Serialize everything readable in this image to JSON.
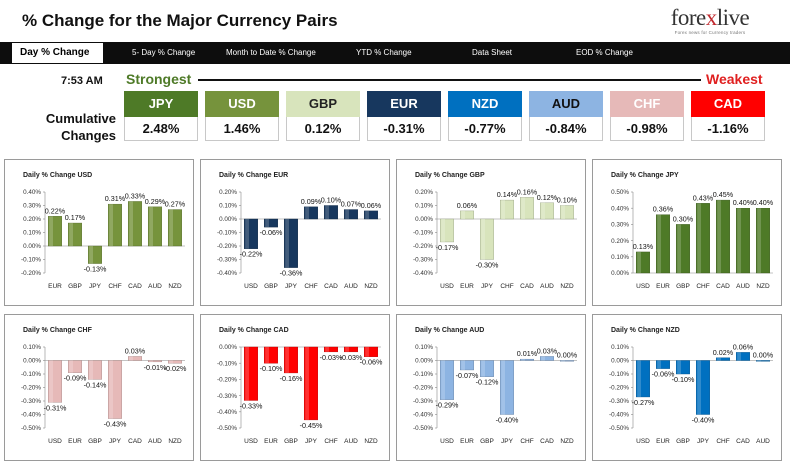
{
  "header": {
    "title": "% Change for the Major Currency Pairs"
  },
  "logo": {
    "prefix": "fore",
    "x": "x",
    "suffix": "live",
    "tagline": "Forex news for Currency traders"
  },
  "nav": {
    "items": [
      {
        "label": "Day % Change",
        "active": true
      },
      {
        "label": "5- Day % Change",
        "active": false
      },
      {
        "label": "Month to Date % Change",
        "active": false
      },
      {
        "label": "YTD % Change",
        "active": false
      },
      {
        "label": "Data Sheet",
        "active": false
      },
      {
        "label": "EOD % Change",
        "active": false
      }
    ]
  },
  "time": "7:53 AM",
  "strongest_label": "Strongest",
  "weakest_label": "Weakest",
  "cumulative_label": "Cumulative Changes",
  "cumulative": [
    {
      "currency": "JPY",
      "value": "2.48%",
      "color": "#4e7a27"
    },
    {
      "currency": "USD",
      "value": "1.46%",
      "color": "#76933c"
    },
    {
      "currency": "GBP",
      "value": "0.12%",
      "color": "#d8e4bc",
      "text_color": "#222222"
    },
    {
      "currency": "EUR",
      "value": "-0.31%",
      "color": "#17375e"
    },
    {
      "currency": "NZD",
      "value": "-0.77%",
      "color": "#0070c0"
    },
    {
      "currency": "AUD",
      "value": "-0.84%",
      "color": "#8db4e2",
      "text_color": "#111111"
    },
    {
      "currency": "CHF",
      "value": "-0.98%",
      "color": "#e6b9b8"
    },
    {
      "currency": "CAD",
      "value": "-1.16%",
      "color": "#ff0000"
    }
  ],
  "chart_data": [
    {
      "type": "bar",
      "title": "Daily % Change USD",
      "categories": [
        "EUR",
        "GBP",
        "JPY",
        "CHF",
        "CAD",
        "AUD",
        "NZD"
      ],
      "values": [
        0.22,
        0.17,
        -0.13,
        0.31,
        0.33,
        0.29,
        0.27
      ],
      "labels": [
        "0.22%",
        "0.17%",
        "-0.13%",
        "0.31%",
        "0.33%",
        "0.29%",
        "0.27%"
      ],
      "ylim": [
        -0.2,
        0.4
      ],
      "ticks": [
        0.4,
        0.3,
        0.2,
        0.1,
        0.0,
        -0.1,
        -0.2
      ],
      "tick_labels": [
        "0.40%",
        "0.30%",
        "0.20%",
        "0.10%",
        "0.00%",
        "-0.10%",
        "-0.20%"
      ],
      "color": "#76933c"
    },
    {
      "type": "bar",
      "title": "Daily % Change EUR",
      "categories": [
        "USD",
        "GBP",
        "JPY",
        "CHF",
        "CAD",
        "AUD",
        "NZD"
      ],
      "values": [
        -0.22,
        -0.06,
        -0.36,
        0.09,
        0.1,
        0.07,
        0.06
      ],
      "labels": [
        "-0.22%",
        "-0.06%",
        "-0.36%",
        "0.09%",
        "0.10%",
        "0.07%",
        "0.06%"
      ],
      "ylim": [
        -0.4,
        0.2
      ],
      "ticks": [
        0.2,
        0.1,
        0.0,
        -0.1,
        -0.2,
        -0.3,
        -0.4
      ],
      "tick_labels": [
        "0.20%",
        "0.10%",
        "0.00%",
        "-0.10%",
        "-0.20%",
        "-0.30%",
        "-0.40%"
      ],
      "color": "#17375e"
    },
    {
      "type": "bar",
      "title": "Daily % Change GBP",
      "categories": [
        "USD",
        "EUR",
        "JPY",
        "CHF",
        "CAD",
        "AUD",
        "NZD"
      ],
      "values": [
        -0.17,
        0.06,
        -0.3,
        0.14,
        0.16,
        0.12,
        0.1
      ],
      "labels": [
        "-0.17%",
        "0.06%",
        "-0.30%",
        "0.14%",
        "0.16%",
        "0.12%",
        "0.10%"
      ],
      "ylim": [
        -0.4,
        0.2
      ],
      "ticks": [
        0.2,
        0.1,
        0.0,
        -0.1,
        -0.2,
        -0.3,
        -0.4
      ],
      "tick_labels": [
        "0.20%",
        "0.10%",
        "0.00%",
        "-0.10%",
        "-0.20%",
        "-0.30%",
        "-0.40%"
      ],
      "color": "#d8e4bc"
    },
    {
      "type": "bar",
      "title": "Daily % Change JPY",
      "categories": [
        "USD",
        "EUR",
        "GBP",
        "CHF",
        "CAD",
        "AUD",
        "NZD"
      ],
      "values": [
        0.13,
        0.36,
        0.3,
        0.43,
        0.45,
        0.4,
        0.4
      ],
      "labels": [
        "0.13%",
        "0.36%",
        "0.30%",
        "0.43%",
        "0.45%",
        "0.40%",
        "0.40%"
      ],
      "ylim": [
        0.0,
        0.5
      ],
      "ticks": [
        0.5,
        0.4,
        0.3,
        0.2,
        0.1,
        0.0
      ],
      "tick_labels": [
        "0.50%",
        "0.40%",
        "0.30%",
        "0.20%",
        "0.10%",
        "0.00%"
      ],
      "color": "#4e7a27"
    },
    {
      "type": "bar",
      "title": "Daily % Change CHF",
      "categories": [
        "USD",
        "EUR",
        "GBP",
        "JPY",
        "CAD",
        "AUD",
        "NZD"
      ],
      "values": [
        -0.31,
        -0.09,
        -0.14,
        -0.43,
        0.03,
        -0.01,
        -0.02
      ],
      "labels": [
        "-0.31%",
        "-0.09%",
        "-0.14%",
        "-0.43%",
        "0.03%",
        "-0.01%",
        "-0.02%"
      ],
      "ylim": [
        -0.5,
        0.1
      ],
      "ticks": [
        0.1,
        0.0,
        -0.1,
        -0.2,
        -0.3,
        -0.4,
        -0.5
      ],
      "tick_labels": [
        "0.10%",
        "0.00%",
        "-0.10%",
        "-0.20%",
        "-0.30%",
        "-0.40%",
        "-0.50%"
      ],
      "color": "#e6b9b8"
    },
    {
      "type": "bar",
      "title": "Daily % Change CAD",
      "categories": [
        "USD",
        "EUR",
        "GBP",
        "JPY",
        "CHF",
        "AUD",
        "NZD"
      ],
      "values": [
        -0.33,
        -0.1,
        -0.16,
        -0.45,
        -0.03,
        -0.03,
        -0.06
      ],
      "labels": [
        "-0.33%",
        "-0.10%",
        "-0.16%",
        "-0.45%",
        "-0.03%",
        "-0.03%",
        "-0.06%"
      ],
      "ylim": [
        -0.5,
        0.0
      ],
      "ticks": [
        0.0,
        -0.1,
        -0.2,
        -0.3,
        -0.4,
        -0.5
      ],
      "tick_labels": [
        "0.00%",
        "-0.10%",
        "-0.20%",
        "-0.30%",
        "-0.40%",
        "-0.50%"
      ],
      "color": "#ff0000"
    },
    {
      "type": "bar",
      "title": "Daily % Change AUD",
      "categories": [
        "USD",
        "EUR",
        "GBP",
        "JPY",
        "CHF",
        "CAD",
        "NZD"
      ],
      "values": [
        -0.29,
        -0.07,
        -0.12,
        -0.4,
        0.01,
        0.03,
        0.0
      ],
      "labels": [
        "-0.29%",
        "-0.07%",
        "-0.12%",
        "-0.40%",
        "0.01%",
        "0.03%",
        "0.00%"
      ],
      "ylim": [
        -0.5,
        0.1
      ],
      "ticks": [
        0.1,
        0.0,
        -0.1,
        -0.2,
        -0.3,
        -0.4,
        -0.5
      ],
      "tick_labels": [
        "0.10%",
        "0.00%",
        "-0.10%",
        "-0.20%",
        "-0.30%",
        "-0.40%",
        "-0.50%"
      ],
      "color": "#8db4e2"
    },
    {
      "type": "bar",
      "title": "Daily % Change NZD",
      "categories": [
        "USD",
        "EUR",
        "GBP",
        "JPY",
        "CHF",
        "CAD",
        "AUD"
      ],
      "values": [
        -0.27,
        -0.06,
        -0.1,
        -0.4,
        0.02,
        0.06,
        0.0
      ],
      "labels": [
        "-0.27%",
        "-0.06%",
        "-0.10%",
        "-0.40%",
        "0.02%",
        "0.06%",
        "0.00%"
      ],
      "ylim": [
        -0.5,
        0.1
      ],
      "ticks": [
        0.1,
        0.0,
        -0.1,
        -0.2,
        -0.3,
        -0.4,
        -0.5
      ],
      "tick_labels": [
        "0.10%",
        "0.00%",
        "-0.10%",
        "-0.20%",
        "-0.30%",
        "-0.40%",
        "-0.50%"
      ],
      "color": "#0070c0"
    }
  ]
}
